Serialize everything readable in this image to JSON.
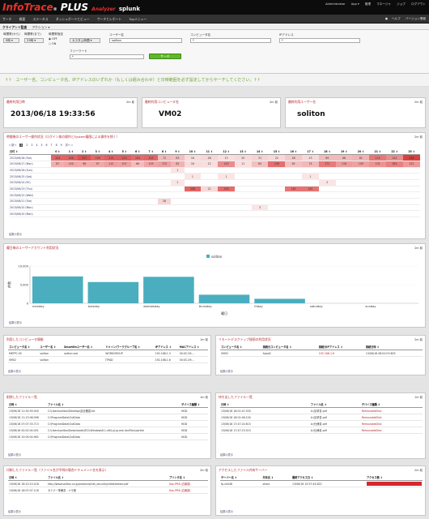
{
  "brand": {
    "name1": "Info",
    "name2": "Trace",
    "name3": "®",
    "name4": " PLUS",
    "analyzer": "Analyzer",
    "splunk": "splunk"
  },
  "toplinks": [
    "Administrator",
    "App ▾",
    "管理",
    "マネージャ",
    "ジョブ",
    "ログアウト"
  ],
  "nav": [
    "サーチ",
    "概要",
    "ステータス",
    "ダッシュボードとビュー",
    "サーチとレポート",
    "Topメニュー"
  ],
  "navright": [
    "ヘルプ",
    "バージョン情報"
  ],
  "subhead": {
    "title": "クライアント監査",
    "action": "アクション ▾"
  },
  "form": {
    "time_from_label": "時間帯(から)",
    "time_to_label": "時間帯(まで)",
    "period_label": "時間帯指定",
    "time_from": "0時",
    "time_to": "23時",
    "radio_off": "OFF",
    "radio_on": "ON",
    "period_sel": "カスタム時間",
    "user_label": "ユーザー名",
    "user_value": "soliton",
    "computer_label": "コンピュータ名",
    "computer_value": "*",
    "ip_label": "IPアドレス",
    "ip_value": "*",
    "free_label": "フリーワード",
    "free_value": "*",
    "search_button": "サーチ"
  },
  "notice": "↑↑　ユーザー名、コンピュータ名、IPアドレスのいずれか（もしくは組み合わせ）と日時範囲を必ず設定してからサーチしてください。↑↑",
  "summary": [
    {
      "title": "最終利用日時",
      "ago": "2m 前",
      "value": "2013/06/18 19:33:56"
    },
    {
      "title": "最終利用コンピュータ名",
      "ago": "2m 前",
      "value": "VM02"
    },
    {
      "title": "最終利用ユーザー名",
      "ago": "2m 前",
      "value": "soliton"
    }
  ],
  "heatmap": {
    "title": "時間毎のユーザー操作状況（ログイン前の操作とSystem権限による操作を除く）",
    "ago": "2m 前",
    "pager": [
      "« 前へ",
      "1",
      "2",
      "3",
      "4",
      "5",
      "6",
      "7",
      "8",
      "9",
      "次へ »"
    ],
    "header": [
      "日付 ↕",
      "0 ↕",
      "1 ↕",
      "2 ↕",
      "3 ↕",
      "4 ↕",
      "5 ↕",
      "6 ↕",
      "7 ↕",
      "8 ↕",
      "9 ↕",
      "10 ↕",
      "11 ↕",
      "12 ↕",
      "13 ↕",
      "14 ↕",
      "15 ↕",
      "16 ↕",
      "17 ↕",
      "18 ↕",
      "19 ↕",
      "20 ↕",
      "21 ↕",
      "22 ↕",
      "23 ↕"
    ],
    "rows": [
      {
        "date": "2013/06/18 (Tue)",
        "cells": [
          "204",
          "208",
          "237",
          "199",
          "213",
          "215",
          "194",
          "203",
          "72",
          "63",
          "16",
          "26",
          "13",
          "20",
          "31",
          "22",
          "48",
          "23",
          "69",
          "68",
          "81",
          "174",
          "142",
          "266"
        ]
      },
      {
        "date": "2013/06/17 (Mon)",
        "cells": [
          "87",
          "100",
          "96",
          "97",
          "112",
          "107",
          "66",
          "103",
          "113",
          "82",
          "16",
          "12",
          "143",
          "11",
          "60",
          "190",
          "62",
          "74",
          "171",
          "118",
          "109",
          "131",
          "162",
          "122"
        ]
      },
      {
        "date": "2013/06/16 (Sun)",
        "cells": [
          "",
          "",
          "",
          "",
          "",
          "",
          "",
          "",
          "",
          "1",
          "",
          "",
          "",
          "",
          "",
          "",
          "",
          "",
          "",
          "",
          "",
          "",
          "",
          ""
        ]
      },
      {
        "date": "2013/06/15 (Sat)",
        "cells": [
          "",
          "",
          "",
          "",
          "",
          "",
          "",
          "",
          "",
          "",
          "1",
          "",
          "1",
          "",
          "",
          "",
          "",
          "1",
          "",
          "",
          "",
          "",
          "",
          ""
        ]
      },
      {
        "date": "2013/06/14 (Fri)",
        "cells": [
          "",
          "",
          "",
          "",
          "",
          "",
          "",
          "",
          "",
          "1",
          "",
          "",
          "",
          "",
          "",
          "",
          "",
          "",
          "2",
          "",
          "",
          "",
          "",
          ""
        ]
      },
      {
        "date": "2013/06/13 (Thu)",
        "cells": [
          "",
          "",
          "",
          "",
          "",
          "",
          "",
          "",
          "",
          "",
          "208",
          "21",
          "193",
          "",
          "",
          "",
          "181",
          "181",
          "",
          "",
          "",
          "",
          "",
          ""
        ]
      },
      {
        "date": "2013/06/12 (Wed)",
        "cells": [
          "",
          "",
          "",
          "",
          "",
          "",
          "",
          "",
          "",
          "",
          "",
          "",
          "",
          "",
          "",
          "",
          "",
          "",
          "",
          "",
          "",
          "",
          "",
          ""
        ]
      },
      {
        "date": "2013/06/11 (Tue)",
        "cells": [
          "",
          "",
          "",
          "",
          "",
          "",
          "",
          "",
          "28",
          "",
          "",
          "",
          "",
          "",
          "",
          "",
          "",
          "",
          "",
          "",
          "",
          "",
          "",
          ""
        ]
      },
      {
        "date": "2013/06/10 (Mon)",
        "cells": [
          "",
          "",
          "",
          "",
          "",
          "",
          "",
          "",
          "",
          "",
          "",
          "",
          "",
          "",
          "3",
          "",
          "",
          "",
          "",
          "",
          "",
          "",
          "",
          ""
        ]
      },
      {
        "date": "2013/06/10 (Mon)",
        "cells": [
          "",
          "",
          "",
          "",
          "",
          "",
          "",
          "",
          "",
          "",
          "",
          "",
          "",
          "",
          "",
          "",
          "",
          "",
          "",
          "",
          "",
          "",
          "",
          ""
        ]
      }
    ],
    "link": "結果の表示"
  },
  "weekly": {
    "title": "曜日毎のユーザーアカウント利用状況",
    "ago": "2m 前",
    "legend": "soliton",
    "ylabel": "件数",
    "xlabel": "曜日",
    "link": "結果の表示"
  },
  "chart_data": {
    "type": "bar",
    "categories": [
      "monday",
      "tuesday",
      "wednesday",
      "thursday",
      "friday",
      "saturday",
      "sunday"
    ],
    "series": [
      {
        "name": "soliton",
        "values": [
          7200,
          5700,
          7100,
          2300,
          1200,
          0,
          0
        ]
      }
    ],
    "yticks": [
      "10,000",
      "5,000",
      "0"
    ],
    "ylim": [
      0,
      10000
    ],
    "xlabel": "曜日",
    "ylabel": "件数",
    "legend": "top",
    "grid": false
  },
  "computers": {
    "title": "利用したコンピュータ情報",
    "ago": "1m 前",
    "header": [
      "コンピュータ名 ↕",
      "ユーザー名 ↕",
      "SmartOnユーザー名 ↕",
      "ドメイン/ワークグループ名 ↕",
      "IPアドレス ↕",
      "MACアドレス ↕"
    ],
    "rows": [
      [
        "MKTPC-05",
        "soliton",
        "soliton\nsub",
        "WORKGROUP",
        "192.168.1.3",
        "00:0C:29:..."
      ],
      [
        "VM02",
        "soliton",
        "",
        "ITPAD",
        "192.168.1.6",
        "00:0C:29:..."
      ]
    ],
    "link": "結果の表示"
  },
  "remote": {
    "title": "リモートデスクトップ接続の利用状況",
    "ago": "2m 前",
    "header": [
      "コンピュータ名 ↕",
      "接続元コンピュータ名 ↕",
      "接続元IPアドレス ↕",
      "接続日時 ↕"
    ],
    "rows": [
      [
        "VM02",
        "itpad2",
        "192.168.1.6",
        "13/06/18 08:02:03.603"
      ]
    ],
    "link": "結果の表示"
  },
  "deleted": {
    "title": "削除したファイル一覧",
    "ago": "1m 前",
    "header": [
      "日時 ↕",
      "ファイル名 ↕",
      "デバイス種類 ↕"
    ],
    "rows": [
      [
        "13/06/18 11:54:55.000",
        "C:\\Users\\soliton\\Desktop\\自社確認.txt",
        "HDD"
      ],
      [
        "13/06/18 11:13:06.098",
        "C:\\ProgramData\\OutData",
        "HDD"
      ],
      [
        "13/06/18 07:07:33.713",
        "C:\\ProgramData\\OutData",
        "HDD"
      ],
      [
        "13/06/18 00:02:04.051",
        "C:\\Users\\soliton\\Downloads\\IE10-Windows6.1-x64-ja-jp.exe.4cd5fcd.partial",
        "HDD"
      ],
      [
        "13/06/18 10:05:04.962",
        "C:\\ProgramData\\OutData",
        "HDD"
      ]
    ],
    "link": "結果の表示"
  },
  "copied": {
    "title": "持ち出したファイル一覧",
    "ago": "1m 前",
    "header": [
      "日時 ↕",
      "ファイル名 ↕",
      "デバイス種類 ↕"
    ],
    "rows": [
      [
        "13/06/18 18:01:47.030",
        "A:\\請求書.pdf",
        "RemovableDisk"
      ],
      [
        "13/06/18 18:01:46.100",
        "A:\\請求書.pdf",
        "RemovableDisk"
      ],
      [
        "13/06/18 17:47:24.615",
        "A:\\仕様書.pdf",
        "RemovableDisk"
      ],
      [
        "13/06/18 17:47:23.515",
        "A:\\仕様書.pdf",
        "RemovableDisk"
      ]
    ],
    "link": "結果の表示"
  },
  "printed": {
    "title": "印刷したファイル一覧（ファイル名が不明の場合ドキュメント名を表示）",
    "ago": "2m 前",
    "header": [
      "日時 ↕",
      "ファイル名 ↕",
      "プリンタ名 ↕"
    ],
    "rows": [
      [
        "13/06/18 18:10:15.418",
        "http://www.soliton.co.jp/products/net_security/netattestsvr.pdf",
        "Doc-PR8 (広報部)"
      ],
      [
        "13/06/18 18:07:07.118",
        "セミナー準備書 - メモ帳",
        "Doc-PR8 (広報部)"
      ]
    ],
    "link": "結果の表示"
  },
  "servers": {
    "title": "アクセスしたファイル共有サーバー",
    "ago": "2m 前",
    "header": [
      "サーバー名 ↕",
      "共有名 ↕",
      "最終アクセス日 ↕",
      "アクセス数 ↕"
    ],
    "rows": [
      [
        "fp-sh048",
        "share",
        "13/06/18 15:57:49.822",
        ""
      ]
    ],
    "access_fraction": 1.0,
    "link": "結果の表示"
  }
}
